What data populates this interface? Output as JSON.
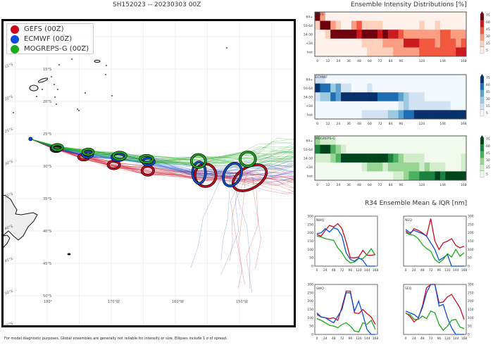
{
  "map": {
    "title": "SH152023 -- 20230303 00Z",
    "legend": [
      {
        "label": "GEFS (00Z)",
        "color": "#cc0a1c"
      },
      {
        "label": "ECMWF (00Z)",
        "color": "#0a4fdc"
      },
      {
        "label": "MOGREPS-G (00Z)",
        "color": "#1aaa1a"
      }
    ],
    "lat_labels": [
      "15°S",
      "20°S",
      "25°S",
      "30°S",
      "35°S",
      "40°S",
      "45°S",
      "50°S",
      "55°S"
    ],
    "lon_labels": [
      "180°",
      "170°W",
      "160°W",
      "150°W"
    ],
    "storm_start": {
      "lon": 177.4,
      "lat": -25.8
    },
    "ellipses": [
      {
        "model": "GEFS",
        "lon": 181.4,
        "lat": -27.3,
        "rx": 0.8,
        "ry": 0.45
      },
      {
        "model": "ECMWF",
        "lon": 181.5,
        "lat": -27.2,
        "rx": 0.8,
        "ry": 0.45
      },
      {
        "model": "MOGREPS-G",
        "lon": 181.6,
        "lat": -27.1,
        "rx": 0.8,
        "ry": 0.45
      },
      {
        "model": "GEFS",
        "lon": 185.7,
        "lat": -28.6,
        "rx": 0.8,
        "ry": 0.45
      },
      {
        "model": "ECMWF",
        "lon": 186.3,
        "lat": -28.2,
        "rx": 0.8,
        "ry": 0.45
      },
      {
        "model": "MOGREPS-G",
        "lon": 186.4,
        "lat": -27.8,
        "rx": 0.8,
        "ry": 0.45
      },
      {
        "model": "GEFS",
        "lon": 190.4,
        "lat": -29.8,
        "rx": 0.9,
        "ry": 0.6
      },
      {
        "model": "ECMWF",
        "lon": 191.1,
        "lat": -28.6,
        "rx": 1.0,
        "ry": 0.55
      },
      {
        "model": "MOGREPS-G",
        "lon": 191.3,
        "lat": -28.4,
        "rx": 1.0,
        "ry": 0.55
      },
      {
        "model": "GEFS",
        "lon": 195.7,
        "lat": -30.7,
        "rx": 0.9,
        "ry": 0.7
      },
      {
        "model": "ECMWF",
        "lon": 195.8,
        "lat": -29.3,
        "rx": 0.9,
        "ry": 0.55
      },
      {
        "model": "MOGREPS-G",
        "lon": 195.5,
        "lat": -28.9,
        "rx": 1.0,
        "ry": 0.55
      },
      {
        "model": "GEFS",
        "lon": 204.7,
        "lat": -31.4,
        "rx": 1.65,
        "ry": 1.75
      },
      {
        "model": "ECMWF",
        "lon": 203.7,
        "lat": -31.0,
        "rx": 1.0,
        "ry": 1.65
      },
      {
        "model": "MOGREPS-G",
        "lon": 203.6,
        "lat": -29.2,
        "rx": 1.1,
        "ry": 1.0
      },
      {
        "model": "GEFS",
        "lon": 211.6,
        "lat": -31.8,
        "rx": 2.85,
        "ry": 1.65,
        "tilt": -30
      },
      {
        "model": "ECMWF",
        "lon": 208.9,
        "lat": -31.3,
        "rx": 1.3,
        "ry": 1.85,
        "tilt": 25
      },
      {
        "model": "MOGREPS-G",
        "lon": 211.3,
        "lat": -28.9,
        "rx": 1.2,
        "ry": 1.1
      }
    ],
    "footer": "For model diagnostic purposes. Global ensembles are generally not reliable for intensity or size. Ellipses include 1 σ of spread."
  },
  "chart_data": [
    {
      "type": "heatmap",
      "title": "Ensemble Intensity Distributions [%]",
      "name": "GEFS",
      "x": [
        0,
        6,
        12,
        18,
        24,
        30,
        36,
        42,
        48,
        54,
        60,
        66,
        72,
        78,
        84,
        90,
        96,
        102,
        108,
        114,
        120,
        126,
        132,
        138,
        144,
        150,
        156,
        162,
        168
      ],
      "xticks": [
        "0",
        "12",
        "24",
        "36",
        "48",
        "60",
        "72",
        "84",
        "96",
        "120",
        "144",
        "168"
      ],
      "yticks": [
        "64+",
        "50-64",
        "34-50",
        "<34",
        "lost"
      ],
      "colorbar_ticks": [
        "75",
        "60",
        "45",
        "30",
        "15",
        "5"
      ],
      "colormap": "Reds",
      "values": [
        [
          75,
          30,
          5,
          5,
          5,
          5,
          5,
          5,
          5,
          5,
          5,
          5,
          5,
          5,
          5,
          5,
          5,
          5,
          5,
          5,
          5,
          5,
          5,
          5,
          5,
          5,
          5,
          5,
          5
        ],
        [
          15,
          75,
          75,
          30,
          15,
          5,
          5,
          30,
          45,
          15,
          15,
          15,
          15,
          5,
          5,
          5,
          5,
          5,
          5,
          5,
          15,
          5,
          5,
          15,
          5,
          5,
          5,
          5,
          5
        ],
        [
          5,
          5,
          15,
          75,
          75,
          75,
          75,
          75,
          60,
          75,
          75,
          75,
          60,
          75,
          60,
          60,
          45,
          30,
          30,
          30,
          30,
          30,
          30,
          30,
          45,
          45,
          30,
          30,
          30
        ],
        [
          5,
          5,
          5,
          5,
          5,
          5,
          5,
          5,
          5,
          15,
          15,
          15,
          15,
          30,
          30,
          30,
          30,
          60,
          60,
          60,
          45,
          45,
          45,
          30,
          45,
          45,
          45,
          30,
          45
        ],
        [
          5,
          5,
          5,
          5,
          5,
          5,
          5,
          5,
          5,
          5,
          15,
          15,
          15,
          15,
          15,
          30,
          30,
          30,
          30,
          30,
          45,
          45,
          45,
          45,
          45,
          45,
          45,
          60,
          60
        ]
      ]
    },
    {
      "type": "heatmap",
      "name": "ECMWF",
      "x": [
        0,
        6,
        12,
        18,
        24,
        30,
        36,
        42,
        48,
        54,
        60,
        66,
        72,
        78,
        84,
        90,
        96,
        102,
        108,
        114,
        120,
        126,
        132,
        138,
        144,
        150,
        156,
        162,
        168
      ],
      "xticks": [
        "0",
        "12",
        "24",
        "36",
        "48",
        "60",
        "72",
        "84",
        "96",
        "120",
        "144",
        "168"
      ],
      "yticks": [
        "64+",
        "50-64",
        "34-50",
        "<34",
        "lost"
      ],
      "colorbar_ticks": [
        "75",
        "60",
        "45",
        "30",
        "15",
        "5"
      ],
      "colormap": "Blues",
      "values": [
        [
          15,
          15,
          5,
          5,
          5,
          5,
          5,
          5,
          5,
          5,
          5,
          5,
          5,
          5,
          5,
          5,
          5,
          5,
          5,
          5,
          5,
          5,
          5,
          5,
          5,
          5,
          5,
          5,
          5
        ],
        [
          75,
          60,
          60,
          30,
          45,
          15,
          15,
          5,
          5,
          5,
          15,
          5,
          5,
          5,
          5,
          5,
          5,
          5,
          5,
          5,
          5,
          5,
          5,
          5,
          5,
          5,
          5,
          5,
          5
        ],
        [
          15,
          30,
          30,
          60,
          45,
          75,
          75,
          75,
          75,
          75,
          75,
          75,
          60,
          60,
          60,
          60,
          45,
          30,
          15,
          15,
          15,
          5,
          5,
          5,
          5,
          5,
          5,
          5,
          5
        ],
        [
          5,
          5,
          5,
          5,
          5,
          5,
          5,
          5,
          5,
          5,
          5,
          5,
          5,
          5,
          5,
          5,
          15,
          30,
          15,
          15,
          15,
          15,
          15,
          15,
          15,
          15,
          5,
          5,
          5
        ],
        [
          5,
          5,
          5,
          5,
          5,
          5,
          5,
          5,
          5,
          15,
          15,
          15,
          15,
          15,
          30,
          30,
          45,
          60,
          60,
          75,
          75,
          75,
          75,
          75,
          75,
          75,
          75,
          75,
          75
        ]
      ]
    },
    {
      "type": "heatmap",
      "name": "MOGREPS-G",
      "x": [
        0,
        6,
        12,
        18,
        24,
        30,
        36,
        42,
        48,
        54,
        60,
        66,
        72,
        78,
        84,
        90,
        96,
        102,
        108,
        114,
        120,
        126,
        132,
        138,
        144,
        150,
        156,
        162,
        168
      ],
      "xticks": [
        "0",
        "12",
        "24",
        "36",
        "48",
        "60",
        "72",
        "84",
        "96",
        "120",
        "144",
        "168"
      ],
      "yticks": [
        "64+",
        "50-64",
        "34-50",
        "<34",
        "lost"
      ],
      "colorbar_ticks": [
        "75",
        "60",
        "45",
        "30",
        "15",
        "5"
      ],
      "colormap": "Greens",
      "values": [
        [
          30,
          15,
          15,
          15,
          5,
          5,
          5,
          5,
          5,
          5,
          5,
          5,
          5,
          5,
          5,
          5,
          5,
          5,
          5,
          5,
          5,
          5,
          5,
          5,
          5,
          5,
          5,
          5,
          5
        ],
        [
          60,
          75,
          75,
          45,
          30,
          15,
          5,
          5,
          5,
          5,
          5,
          5,
          5,
          5,
          5,
          5,
          5,
          5,
          5,
          5,
          5,
          5,
          5,
          5,
          5,
          5,
          5,
          5,
          5
        ],
        [
          15,
          15,
          15,
          30,
          45,
          75,
          75,
          75,
          75,
          75,
          75,
          75,
          75,
          75,
          60,
          45,
          30,
          15,
          15,
          15,
          15,
          5,
          5,
          5,
          5,
          5,
          5,
          5,
          15
        ],
        [
          5,
          5,
          5,
          5,
          5,
          5,
          5,
          5,
          5,
          15,
          30,
          30,
          30,
          15,
          30,
          30,
          30,
          30,
          30,
          30,
          15,
          30,
          15,
          15,
          15,
          5,
          5,
          5,
          15
        ],
        [
          5,
          5,
          5,
          5,
          5,
          5,
          5,
          5,
          5,
          5,
          5,
          5,
          5,
          5,
          5,
          15,
          15,
          30,
          45,
          45,
          60,
          60,
          60,
          75,
          60,
          75,
          75,
          75,
          75
        ]
      ]
    },
    {
      "type": "line",
      "title": "R34 Ensemble Mean & IQR [nm]",
      "quadrant": "NWQ",
      "x": [
        0,
        12,
        24,
        36,
        48,
        60,
        72,
        84,
        96,
        108,
        120,
        132,
        144,
        156,
        168
      ],
      "xticks": [
        "0",
        "24",
        "48",
        "72",
        "96",
        "120",
        "144",
        "168"
      ],
      "yticks": [
        "0",
        "50",
        "100",
        "150",
        "200",
        "250",
        "300"
      ],
      "ylim": [
        0,
        300
      ],
      "series": [
        {
          "name": "GEFS",
          "values": [
            190,
            180,
            215,
            245,
            235,
            255,
            225,
            145,
            50,
            50,
            55,
            95,
            65,
            65,
            70
          ]
        },
        {
          "name": "ECMWF",
          "values": [
            195,
            200,
            225,
            205,
            230,
            220,
            180,
            80,
            40,
            30,
            50,
            35,
            0,
            0,
            0
          ]
        },
        {
          "name": "MOGREPS-G",
          "values": [
            180,
            175,
            165,
            160,
            155,
            110,
            80,
            40,
            20,
            25,
            45,
            45,
            70,
            105,
            65
          ]
        }
      ]
    },
    {
      "type": "line",
      "quadrant": "NEQ",
      "x": [
        0,
        12,
        24,
        36,
        48,
        60,
        72,
        84,
        96,
        108,
        120,
        132,
        144,
        156,
        168
      ],
      "xticks": [
        "0",
        "24",
        "48",
        "72",
        "96",
        "120",
        "144",
        "168"
      ],
      "yticks": [
        "0",
        "50",
        "100",
        "150",
        "200",
        "250",
        "300"
      ],
      "ylim": [
        0,
        300
      ],
      "series": [
        {
          "name": "GEFS",
          "values": [
            210,
            190,
            225,
            215,
            200,
            180,
            285,
            150,
            100,
            140,
            150,
            165,
            125,
            110,
            120
          ]
        },
        {
          "name": "ECMWF",
          "values": [
            220,
            200,
            215,
            205,
            195,
            180,
            140,
            100,
            35,
            50,
            70,
            0,
            0,
            0,
            0
          ]
        },
        {
          "name": "MOGREPS-G",
          "values": [
            200,
            190,
            185,
            165,
            130,
            105,
            90,
            40,
            20,
            40,
            75,
            55,
            100,
            60,
            80
          ]
        }
      ]
    },
    {
      "type": "line",
      "quadrant": "SWQ",
      "x": [
        0,
        12,
        24,
        36,
        48,
        60,
        72,
        84,
        96,
        108,
        120,
        132,
        144,
        156,
        168
      ],
      "xticks": [
        "0",
        "24",
        "48",
        "72",
        "96",
        "120",
        "144",
        "168"
      ],
      "yticks": [
        "0",
        "50",
        "100",
        "150",
        "200",
        "250",
        "300"
      ],
      "ylim": [
        0,
        300
      ],
      "series": [
        {
          "name": "GEFS",
          "values": [
            120,
            105,
            100,
            95,
            100,
            85,
            165,
            260,
            260,
            130,
            125,
            150,
            125,
            105,
            60
          ]
        },
        {
          "name": "ECMWF",
          "values": [
            130,
            105,
            100,
            85,
            70,
            110,
            150,
            250,
            250,
            140,
            200,
            120,
            30,
            0,
            0
          ]
        },
        {
          "name": "MOGREPS-G",
          "values": [
            95,
            85,
            70,
            55,
            50,
            40,
            60,
            70,
            50,
            20,
            15,
            70,
            60,
            85,
            30
          ]
        }
      ]
    },
    {
      "type": "line",
      "quadrant": "SEQ",
      "x": [
        0,
        12,
        24,
        36,
        48,
        60,
        72,
        84,
        96,
        108,
        120,
        132,
        144,
        156,
        168
      ],
      "xticks": [
        "0",
        "24",
        "48",
        "72",
        "96",
        "120",
        "144",
        "168"
      ],
      "yticks": [
        "0",
        "50",
        "100",
        "150",
        "200",
        "250",
        "300"
      ],
      "ylim": [
        0,
        300
      ],
      "series": [
        {
          "name": "GEFS",
          "values": [
            130,
            110,
            75,
            95,
            170,
            280,
            300,
            300,
            190,
            195,
            225,
            240,
            200,
            160,
            90
          ]
        },
        {
          "name": "ECMWF",
          "values": [
            140,
            130,
            120,
            100,
            160,
            250,
            300,
            300,
            170,
            180,
            100,
            40,
            0,
            0,
            0
          ]
        },
        {
          "name": "MOGREPS-G",
          "values": [
            125,
            120,
            90,
            90,
            110,
            95,
            140,
            130,
            60,
            25,
            50,
            85,
            90,
            45,
            35
          ]
        }
      ]
    }
  ]
}
